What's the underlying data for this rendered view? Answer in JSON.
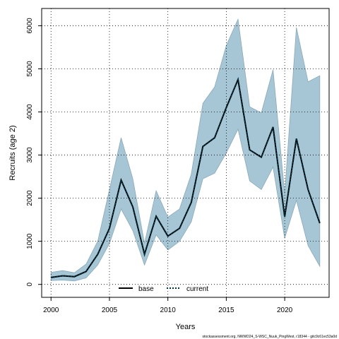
{
  "chart_data": {
    "type": "line",
    "title": "",
    "xlabel": "Years",
    "ylabel": "Recruits (age 2)",
    "xlim": [
      1999.2,
      2023.8
    ],
    "ylim": [
      -300,
      6400
    ],
    "x_ticks": [
      2000,
      2005,
      2010,
      2015,
      2020
    ],
    "y_ticks": [
      0,
      1000,
      2000,
      3000,
      4000,
      5000,
      6000
    ],
    "grid": true,
    "legend_position": "bottom-center",
    "x": [
      2000,
      2001,
      2002,
      2003,
      2004,
      2005,
      2006,
      2007,
      2008,
      2009,
      2010,
      2011,
      2012,
      2013,
      2014,
      2015,
      2016,
      2017,
      2018,
      2019,
      2020,
      2021,
      2022,
      2023
    ],
    "series": [
      {
        "name": "base",
        "line_style": "solid",
        "color": "#000000",
        "values": [
          160,
          200,
          180,
          300,
          700,
          1300,
          2420,
          1800,
          700,
          1580,
          1120,
          1300,
          1900,
          3200,
          3400,
          4100,
          4750,
          3120,
          2950,
          3650,
          1570,
          3380,
          2200,
          1420
        ]
      },
      {
        "name": "current",
        "line_style": "dotted",
        "color": "#003344",
        "values": [
          160,
          200,
          180,
          300,
          700,
          1300,
          2420,
          1800,
          700,
          1580,
          1120,
          1300,
          1900,
          3200,
          3400,
          4100,
          4750,
          3120,
          2950,
          3650,
          1570,
          3380,
          2200,
          1420
        ]
      }
    ],
    "confidence_band": {
      "color": "#a6c6d6",
      "lower": [
        90,
        100,
        80,
        150,
        450,
        950,
        1750,
        1250,
        450,
        1150,
        800,
        1000,
        1450,
        2450,
        2580,
        3050,
        3600,
        2400,
        2200,
        2720,
        1070,
        1950,
        900,
        420
      ],
      "upper": [
        280,
        320,
        270,
        470,
        1000,
        2200,
        3400,
        2450,
        950,
        2170,
        1560,
        1750,
        2550,
        4200,
        4580,
        5540,
        6150,
        4120,
        3980,
        4980,
        2100,
        5960,
        4700,
        4840
      ]
    },
    "footer": "stockassessment.org, NWWD24_S-WSC_Nuuk_PingWest, r18344 - gitc9c61ec53a0d"
  }
}
